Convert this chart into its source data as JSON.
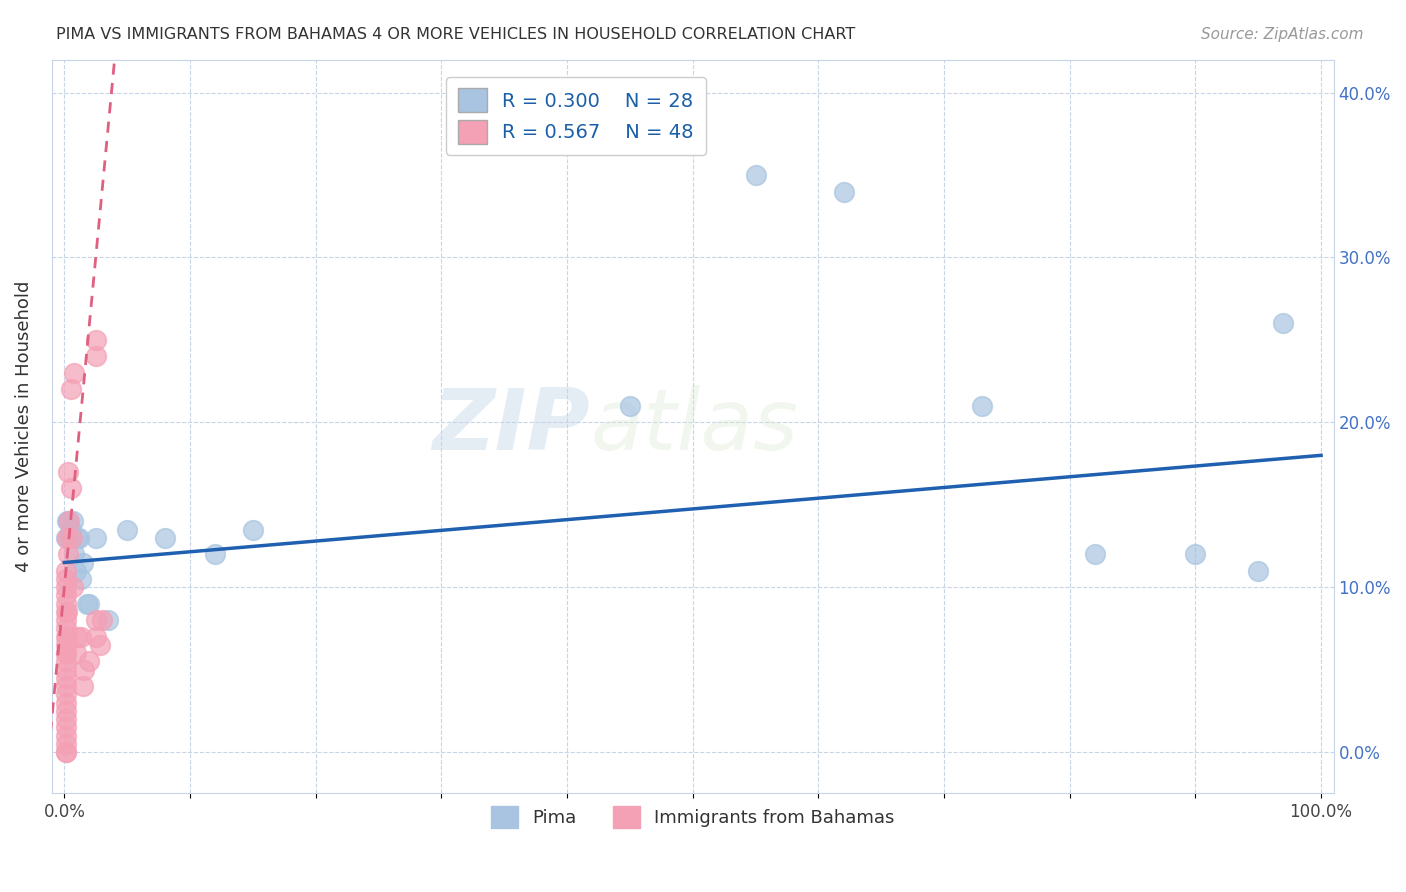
{
  "title": "PIMA VS IMMIGRANTS FROM BAHAMAS 4 OR MORE VEHICLES IN HOUSEHOLD CORRELATION CHART",
  "source": "Source: ZipAtlas.com",
  "ylabel": "4 or more Vehicles in Household",
  "legend_labels": [
    "Pima",
    "Immigrants from Bahamas"
  ],
  "r_pima": 0.3,
  "n_pima": 28,
  "r_bahamas": 0.567,
  "n_bahamas": 48,
  "pima_color": "#a8c4e0",
  "pima_line_color": "#2060b0",
  "bahamas_color": "#f4a0b5",
  "bahamas_line_color": "#e06080",
  "watermark_zip": "ZIP",
  "watermark_atlas": "atlas",
  "pima_x": [
    0.001,
    0.002,
    0.003,
    0.004,
    0.005,
    0.007,
    0.008,
    0.009,
    0.01,
    0.012,
    0.013,
    0.015,
    0.018,
    0.02,
    0.025,
    0.035,
    0.05,
    0.08,
    0.12,
    0.15,
    0.45,
    0.55,
    0.62,
    0.73,
    0.82,
    0.9,
    0.95,
    0.97
  ],
  "pima_y": [
    0.13,
    0.14,
    0.14,
    0.13,
    0.135,
    0.14,
    0.12,
    0.11,
    0.13,
    0.13,
    0.105,
    0.115,
    0.09,
    0.09,
    0.13,
    0.08,
    0.135,
    0.13,
    0.12,
    0.135,
    0.21,
    0.35,
    0.34,
    0.21,
    0.12,
    0.12,
    0.11,
    0.26
  ],
  "bahamas_x": [
    0.001,
    0.001,
    0.001,
    0.001,
    0.001,
    0.001,
    0.001,
    0.001,
    0.001,
    0.001,
    0.001,
    0.001,
    0.001,
    0.001,
    0.001,
    0.001,
    0.001,
    0.001,
    0.001,
    0.001,
    0.001,
    0.001,
    0.001,
    0.001,
    0.001,
    0.002,
    0.002,
    0.002,
    0.003,
    0.003,
    0.004,
    0.005,
    0.005,
    0.006,
    0.007,
    0.008,
    0.009,
    0.01,
    0.013,
    0.015,
    0.016,
    0.02,
    0.025,
    0.025,
    0.025,
    0.025,
    0.028,
    0.03
  ],
  "bahamas_y": [
    0.0,
    0.0,
    0.005,
    0.01,
    0.015,
    0.02,
    0.025,
    0.03,
    0.035,
    0.04,
    0.045,
    0.05,
    0.055,
    0.06,
    0.065,
    0.07,
    0.075,
    0.08,
    0.085,
    0.09,
    0.095,
    0.1,
    0.105,
    0.11,
    0.06,
    0.07,
    0.085,
    0.13,
    0.12,
    0.17,
    0.14,
    0.16,
    0.22,
    0.13,
    0.1,
    0.23,
    0.06,
    0.07,
    0.07,
    0.04,
    0.05,
    0.055,
    0.24,
    0.25,
    0.08,
    0.07,
    0.065,
    0.08
  ],
  "xlim": [
    -0.01,
    1.01
  ],
  "ylim": [
    -0.025,
    0.42
  ],
  "xticks": [
    0.0,
    0.1,
    0.2,
    0.3,
    0.4,
    0.5,
    0.6,
    0.7,
    0.8,
    0.9,
    1.0
  ],
  "yticks": [
    0.0,
    0.1,
    0.2,
    0.3,
    0.4
  ],
  "ytick_labels_right": [
    "0.0%",
    "10.0%",
    "20.0%",
    "30.0%",
    "40.0%"
  ],
  "xtick_labels": [
    "0.0%",
    "",
    "",
    "",
    "",
    "",
    "",
    "",
    "",
    "",
    "100.0%"
  ],
  "grid_color": "#c8d4e8",
  "background_color": "#ffffff",
  "blue_line_start_y": 0.115,
  "blue_line_end_y": 0.18,
  "pink_line_slope": 8.0,
  "pink_line_intercept": 0.1
}
